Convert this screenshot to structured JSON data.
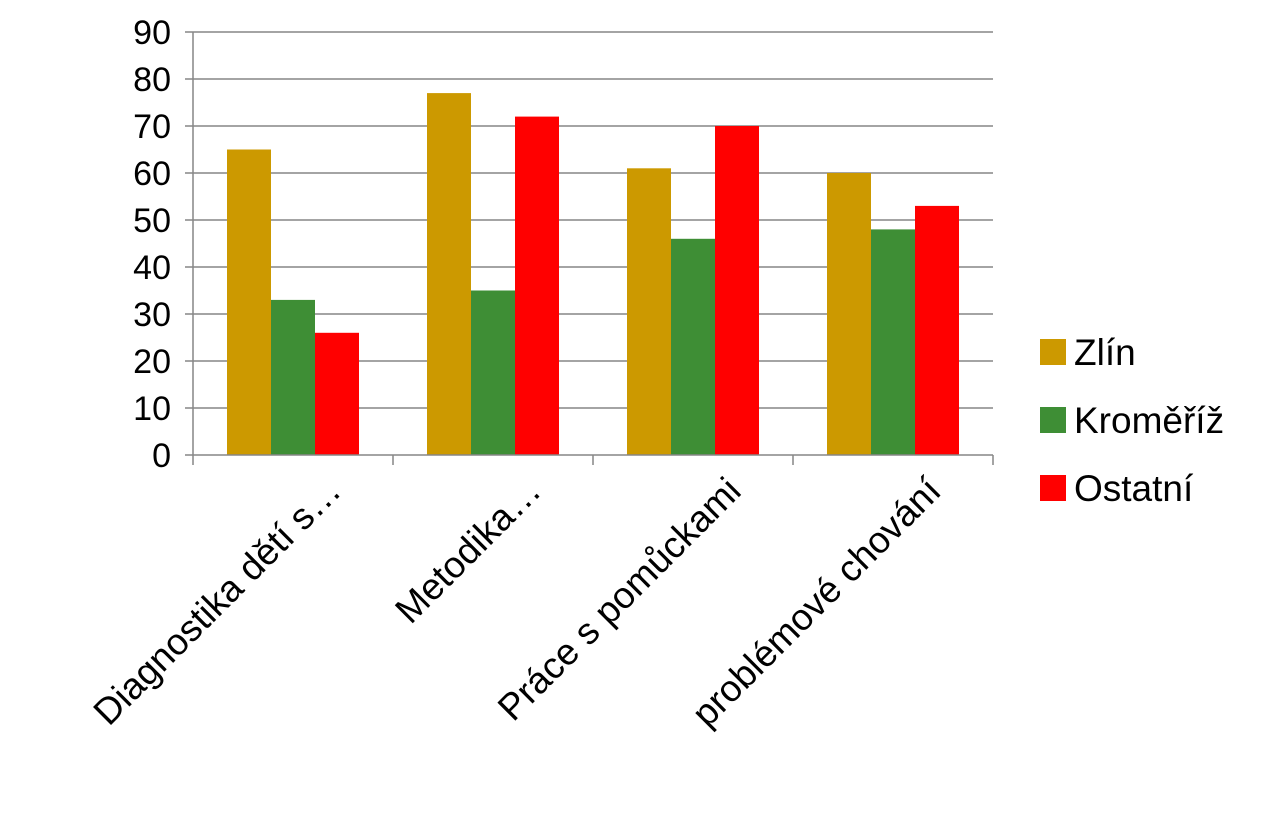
{
  "chart_data": {
    "type": "bar",
    "title": "",
    "xlabel": "",
    "ylabel": "",
    "ylim": [
      0,
      90
    ],
    "yticks": [
      0,
      10,
      20,
      30,
      40,
      50,
      60,
      70,
      80,
      90
    ],
    "grid": true,
    "legend_position": "right",
    "categories": [
      "Diagnostika dětí s…",
      "Metodika…",
      "Práce s pomůckami",
      "problémové chování"
    ],
    "series": [
      {
        "name": "Zlín",
        "color": "#CC9900",
        "values": [
          65,
          77,
          61,
          60
        ]
      },
      {
        "name": "Kroměříž",
        "color": "#3E8E35",
        "values": [
          33,
          35,
          46,
          48
        ]
      },
      {
        "name": "Ostatní",
        "color": "#FF0000",
        "values": [
          26,
          72,
          70,
          53
        ]
      }
    ]
  }
}
